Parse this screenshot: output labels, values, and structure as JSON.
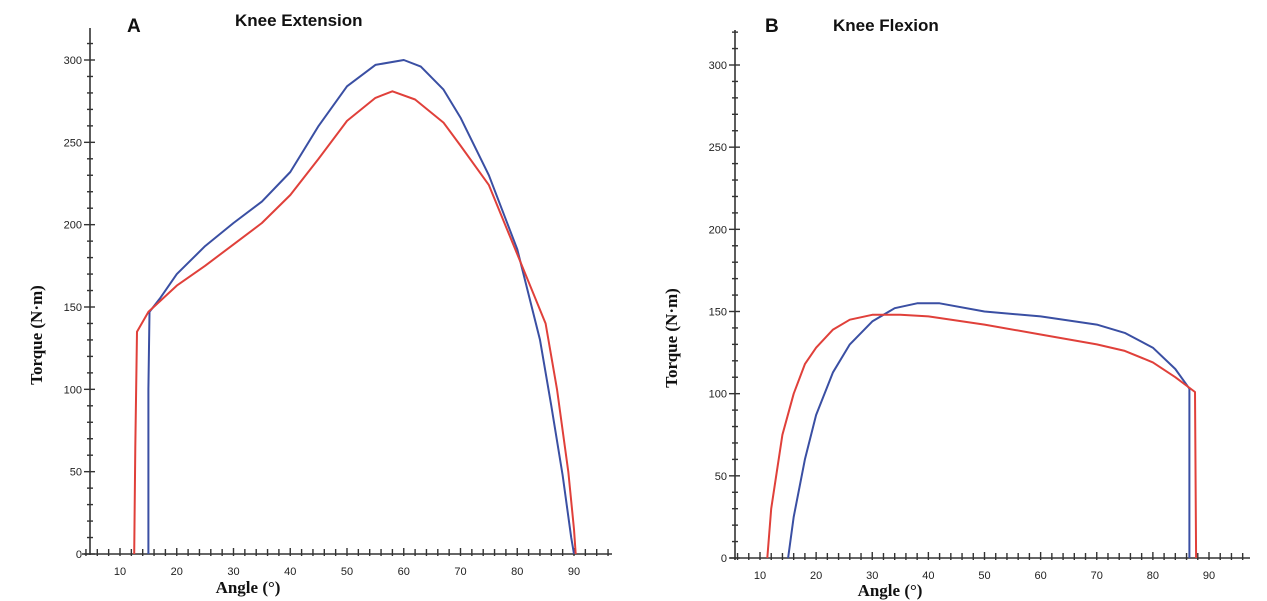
{
  "chart_data": [
    {
      "id": "A",
      "panel_label": "A",
      "title": "Knee Extension",
      "type": "line",
      "xlabel": "Angle  (°)",
      "ylabel": "Torque (N·m)",
      "xlim": [
        3,
        96
      ],
      "ylim": [
        0,
        320
      ],
      "x_ticks": [
        10,
        20,
        30,
        40,
        50,
        60,
        70,
        80,
        90
      ],
      "y_ticks": [
        0,
        50,
        100,
        150,
        200,
        250,
        300
      ],
      "series": [
        {
          "color": "#3a4fa3",
          "points": [
            [
              15,
              0
            ],
            [
              15,
              100
            ],
            [
              15.2,
              147
            ],
            [
              17,
              155
            ],
            [
              20,
              170
            ],
            [
              25,
              187
            ],
            [
              30,
              201
            ],
            [
              35,
              214
            ],
            [
              40,
              232
            ],
            [
              45,
              260
            ],
            [
              50,
              284
            ],
            [
              55,
              297
            ],
            [
              60,
              300
            ],
            [
              63,
              296
            ],
            [
              67,
              282
            ],
            [
              70,
              265
            ],
            [
              75,
              230
            ],
            [
              80,
              185
            ],
            [
              84,
              130
            ],
            [
              86,
              90
            ],
            [
              88,
              48
            ],
            [
              89.5,
              10
            ],
            [
              90,
              0
            ]
          ]
        },
        {
          "color": "#e0403a",
          "points": [
            [
              12.5,
              0
            ],
            [
              12.7,
              65
            ],
            [
              13,
              135
            ],
            [
              15,
              147
            ],
            [
              20,
              163
            ],
            [
              25,
              175
            ],
            [
              30,
              188
            ],
            [
              35,
              201
            ],
            [
              40,
              218
            ],
            [
              45,
              240
            ],
            [
              50,
              263
            ],
            [
              55,
              277
            ],
            [
              58,
              281
            ],
            [
              62,
              276
            ],
            [
              67,
              262
            ],
            [
              70,
              248
            ],
            [
              75,
              224
            ],
            [
              80,
              182
            ],
            [
              85,
              140
            ],
            [
              87,
              100
            ],
            [
              89,
              50
            ],
            [
              90,
              15
            ],
            [
              90.3,
              0
            ]
          ]
        }
      ]
    },
    {
      "id": "B",
      "panel_label": "B",
      "title": "Knee Flexion",
      "type": "line",
      "xlabel": "Angle  (°)",
      "ylabel": "Torque (N·m)",
      "xlim": [
        2,
        96
      ],
      "ylim": [
        0,
        320
      ],
      "x_ticks": [
        10,
        20,
        30,
        40,
        50,
        60,
        70,
        80,
        90
      ],
      "y_ticks": [
        0,
        50,
        100,
        150,
        200,
        250,
        300
      ],
      "series": [
        {
          "color": "#3a4fa3",
          "points": [
            [
              15,
              0
            ],
            [
              16,
              25
            ],
            [
              18,
              60
            ],
            [
              20,
              87
            ],
            [
              23,
              113
            ],
            [
              26,
              130
            ],
            [
              30,
              144
            ],
            [
              34,
              152
            ],
            [
              38,
              155
            ],
            [
              42,
              155
            ],
            [
              50,
              150
            ],
            [
              60,
              147
            ],
            [
              70,
              142
            ],
            [
              75,
              137
            ],
            [
              80,
              128
            ],
            [
              84,
              115
            ],
            [
              86.5,
              103
            ],
            [
              86.5,
              0
            ]
          ]
        },
        {
          "color": "#e0403a",
          "points": [
            [
              11.3,
              0
            ],
            [
              12,
              30
            ],
            [
              14,
              75
            ],
            [
              16,
              100
            ],
            [
              18,
              118
            ],
            [
              20,
              128
            ],
            [
              23,
              139
            ],
            [
              26,
              145
            ],
            [
              30,
              148
            ],
            [
              35,
              148
            ],
            [
              40,
              147
            ],
            [
              50,
              142
            ],
            [
              60,
              136
            ],
            [
              70,
              130
            ],
            [
              75,
              126
            ],
            [
              80,
              119
            ],
            [
              84,
              110
            ],
            [
              87.5,
              101
            ],
            [
              87.7,
              0
            ]
          ]
        }
      ]
    }
  ]
}
